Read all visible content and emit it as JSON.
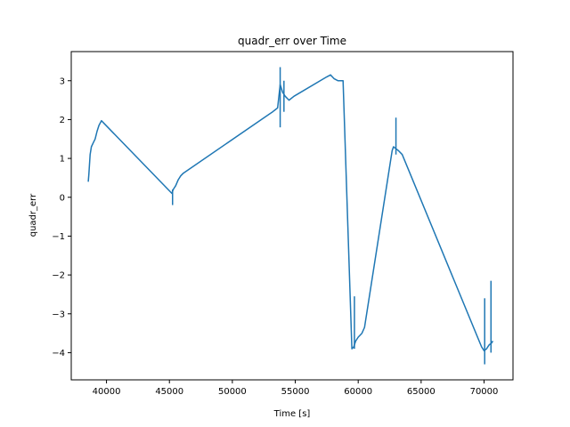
{
  "chart_data": {
    "type": "line",
    "title": "quadr_err over Time",
    "xlabel": "Time [s]",
    "ylabel": "quadr_err",
    "xlim": [
      37200,
      72300
    ],
    "ylim": [
      -4.7,
      3.75
    ],
    "xticks": [
      40000,
      45000,
      50000,
      55000,
      60000,
      65000,
      70000
    ],
    "xtick_labels": [
      "40000",
      "45000",
      "50000",
      "55000",
      "60000",
      "65000",
      "70000"
    ],
    "yticks": [
      3,
      2,
      1,
      0,
      -1,
      -2,
      -3,
      -4
    ],
    "ytick_labels": [
      "3",
      "2",
      "1",
      "0",
      "−1",
      "−2",
      "−3",
      "−4"
    ],
    "grid": false,
    "line_color": "#1f77b4",
    "series": [
      {
        "x": [
          38550,
          38600,
          38700,
          38800,
          38950,
          39100,
          39250,
          39400,
          39600,
          45200,
          45300,
          45500,
          45700,
          45900,
          46100,
          53200,
          53400,
          53600,
          53800,
          54000,
          54200,
          54500,
          54900,
          57500,
          57800,
          58100,
          58400,
          58800,
          59500,
          59650,
          59800,
          60000,
          60300,
          60500,
          62700,
          62800,
          63000,
          63200,
          63500,
          69800,
          70000,
          70200,
          70400,
          70600,
          70700
        ],
        "y": [
          0.4,
          0.6,
          1.1,
          1.3,
          1.4,
          1.5,
          1.7,
          1.85,
          1.97,
          0.1,
          0.2,
          0.3,
          0.45,
          0.55,
          0.62,
          2.2,
          2.25,
          2.3,
          2.9,
          2.7,
          2.6,
          2.5,
          2.6,
          3.1,
          3.15,
          3.05,
          3.0,
          3.0,
          -3.9,
          -3.85,
          -3.7,
          -3.6,
          -3.5,
          -3.35,
          1.2,
          1.3,
          1.25,
          1.2,
          1.1,
          -3.85,
          -3.95,
          -3.9,
          -3.8,
          -3.75,
          -3.7
        ]
      }
    ],
    "spikes": [
      {
        "x": 45250,
        "ymin": -0.2,
        "ymax": 0.2
      },
      {
        "x": 53800,
        "ymin": 1.8,
        "ymax": 3.35
      },
      {
        "x": 54100,
        "ymin": 2.2,
        "ymax": 3.0
      },
      {
        "x": 59700,
        "ymin": -3.9,
        "ymax": -2.55
      },
      {
        "x": 63000,
        "ymin": 1.1,
        "ymax": 2.05
      },
      {
        "x": 70050,
        "ymin": -4.3,
        "ymax": -2.6
      },
      {
        "x": 70550,
        "ymin": -4.0,
        "ymax": -2.15
      }
    ]
  }
}
